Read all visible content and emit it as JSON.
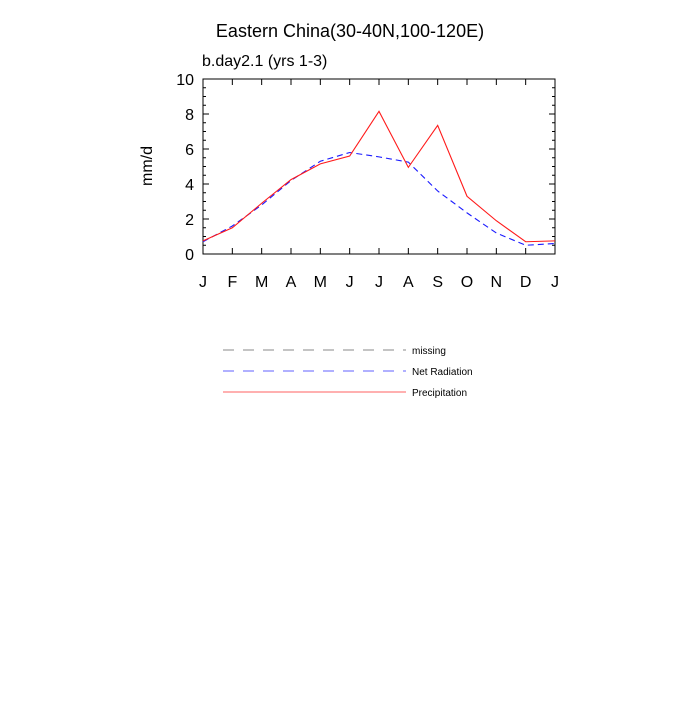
{
  "chart_data": {
    "type": "line",
    "title": "Eastern China(30-40N,100-120E)",
    "subtitle": "b.day2.1 (yrs 1-3)",
    "xlabel": "",
    "ylabel": "mm/d",
    "categories": [
      "J",
      "F",
      "M",
      "A",
      "M",
      "J",
      "J",
      "A",
      "S",
      "O",
      "N",
      "D",
      "J"
    ],
    "ylim": [
      0,
      10
    ],
    "y_ticks": [
      0,
      2,
      4,
      6,
      8,
      10
    ],
    "y_tick_labels": [
      "0",
      "2",
      "4",
      "6",
      "8",
      "10"
    ],
    "grid": false,
    "legend_position": "below",
    "series": [
      {
        "name": "Net Radiation",
        "color": "#1a1aff",
        "style": "dashed",
        "values": [
          0.7,
          1.6,
          2.8,
          4.2,
          5.3,
          5.8,
          5.55,
          5.25,
          3.6,
          2.35,
          1.2,
          0.5,
          0.6
        ]
      },
      {
        "name": "Precipitation",
        "color": "#ff1a1a",
        "style": "solid",
        "values": [
          0.75,
          1.5,
          2.9,
          4.25,
          5.15,
          5.6,
          8.15,
          4.95,
          7.35,
          3.3,
          1.9,
          0.7,
          0.75
        ]
      }
    ],
    "legend": [
      {
        "label": "missing",
        "color": "#a0a0a0",
        "style": "dashed"
      },
      {
        "label": "Net Radiation",
        "color": "#8080ff",
        "style": "dashed"
      },
      {
        "label": "Precipitation",
        "color": "#ff8080",
        "style": "solid"
      }
    ]
  }
}
